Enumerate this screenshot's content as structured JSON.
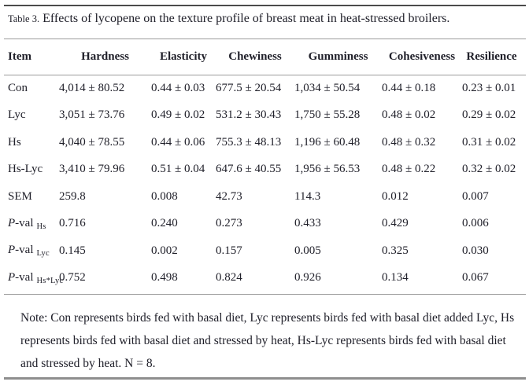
{
  "caption": {
    "label": "Table 3.",
    "title": "Effects of lycopene on the texture profile of breast meat in heat-stressed broilers."
  },
  "table": {
    "columns": [
      "Item",
      "Hardness",
      "Elasticity",
      "Chewiness",
      "Gumminess",
      "Cohesiveness",
      "Resilience"
    ],
    "rows": [
      {
        "p": "",
        "label": "Con",
        "sub": "",
        "values": [
          "4,014 ± 80.52",
          "0.44 ± 0.03",
          "677.5 ± 20.54",
          "1,034 ± 50.54",
          "0.44 ± 0.18",
          "0.23 ± 0.01"
        ]
      },
      {
        "p": "",
        "label": "Lyc",
        "sub": "",
        "values": [
          "3,051 ± 73.76",
          "0.49 ± 0.02",
          "531.2 ± 30.43",
          "1,750 ± 55.28",
          "0.48 ± 0.02",
          "0.29 ± 0.02"
        ]
      },
      {
        "p": "",
        "label": "Hs",
        "sub": "",
        "values": [
          "4,040 ± 78.55",
          "0.44 ± 0.06",
          "755.3 ± 48.13",
          "1,196 ± 60.48",
          "0.48 ± 0.32",
          "0.31 ± 0.02"
        ]
      },
      {
        "p": "",
        "label": "Hs-Lyc",
        "sub": "",
        "values": [
          "3,410 ± 79.96",
          "0.51 ± 0.04",
          "647.6 ± 40.55",
          "1,956 ± 56.53",
          "0.48 ± 0.22",
          "0.32 ± 0.02"
        ]
      },
      {
        "p": "",
        "label": "SEM",
        "sub": "",
        "values": [
          "259.8",
          "0.008",
          "42.73",
          "114.3",
          "0.012",
          "0.007"
        ]
      },
      {
        "p": "P",
        "label": "-val",
        "sub": "Hs",
        "values": [
          "0.716",
          "0.240",
          "0.273",
          "0.433",
          "0.429",
          "0.006"
        ]
      },
      {
        "p": "P",
        "label": "-val",
        "sub": "Lyc",
        "values": [
          "0.145",
          "0.002",
          "0.157",
          "0.005",
          "0.325",
          "0.030"
        ]
      },
      {
        "p": "P",
        "label": "-val",
        "sub": "Hs*Lyc",
        "values": [
          "0.752",
          "0.498",
          "0.824",
          "0.926",
          "0.134",
          "0.067"
        ]
      }
    ]
  },
  "note": {
    "text": "Note: Con represents birds fed with basal diet, Lyc represents birds fed with basal diet added Lyc, Hs represents birds fed with basal diet and stressed by heat, Hs-Lyc represents birds fed with basal diet and stressed by heat. N = 8."
  },
  "colors": {
    "text": "#20202a",
    "rule_dark": "#4b4b4b",
    "rule_light": "#9b9b9b",
    "rule_bottom": "#8e8e8e",
    "background": "#ffffff"
  }
}
